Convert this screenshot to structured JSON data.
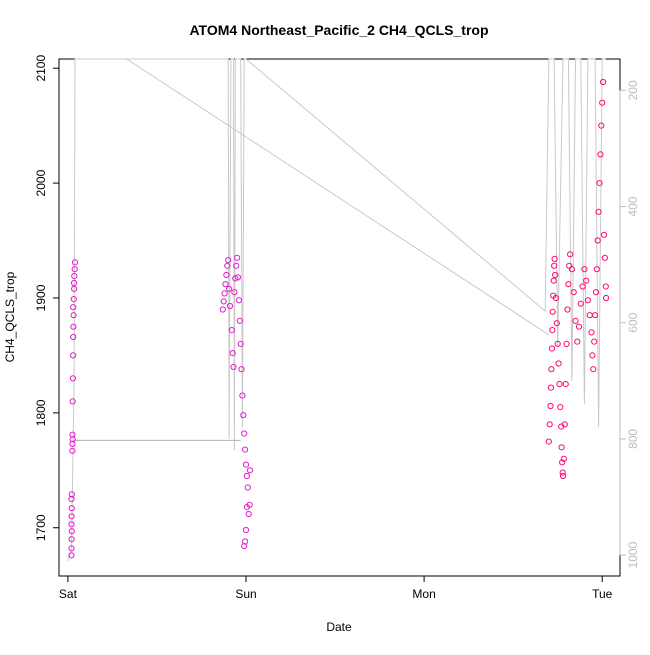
{
  "chart_data": {
    "type": "scatter",
    "title": "ATOM4 Northeast_Pacific_2 CH4_QCLS_trop",
    "xlabel": "Date",
    "ylabel": "CH4_QCLS_trop",
    "x_ticks": [
      "Sat",
      "Sun",
      "Mon",
      "Tue"
    ],
    "x_range_days": [
      -0.05,
      3.1
    ],
    "ylim": [
      1658,
      2108
    ],
    "y_ticks": [
      1700,
      1800,
      1900,
      2000,
      2100
    ],
    "y2_ticks": [
      200,
      400,
      600,
      800,
      1000
    ],
    "y2lim": [
      1036,
      146
    ],
    "grid": false,
    "colors": {
      "ch4_early": "#e31ccf",
      "ch4_late": "#ff0a78",
      "altitude": "#c8c8c8"
    },
    "series": [
      {
        "points": [
          [
            0.02,
            1676
          ],
          [
            0.02,
            1682
          ],
          [
            0.021,
            1690
          ],
          [
            0.022,
            1697
          ],
          [
            0.02,
            1703
          ],
          [
            0.021,
            1710
          ],
          [
            0.022,
            1717
          ],
          [
            0.02,
            1725
          ],
          [
            0.022,
            1729
          ],
          [
            0.025,
            1767
          ],
          [
            0.025,
            1773
          ],
          [
            0.027,
            1777
          ],
          [
            0.025,
            1781
          ],
          [
            0.027,
            1810
          ],
          [
            0.028,
            1830
          ],
          [
            0.03,
            1850
          ],
          [
            0.03,
            1866
          ],
          [
            0.031,
            1875
          ],
          [
            0.032,
            1885
          ],
          [
            0.03,
            1892
          ],
          [
            0.033,
            1899
          ],
          [
            0.035,
            1908
          ],
          [
            0.034,
            1913
          ],
          [
            0.036,
            1919
          ],
          [
            0.038,
            1925
          ],
          [
            0.04,
            1931
          ],
          [
            0.87,
            1890
          ],
          [
            0.875,
            1897
          ],
          [
            0.88,
            1904
          ],
          [
            0.885,
            1912
          ],
          [
            0.89,
            1920
          ],
          [
            0.895,
            1928
          ],
          [
            0.9,
            1933
          ],
          [
            0.905,
            1908
          ],
          [
            0.91,
            1893
          ],
          [
            0.92,
            1872
          ],
          [
            0.925,
            1852
          ],
          [
            0.93,
            1840
          ],
          [
            0.935,
            1905
          ],
          [
            0.94,
            1917
          ],
          [
            0.945,
            1928
          ],
          [
            0.95,
            1935
          ],
          [
            0.955,
            1918
          ],
          [
            0.96,
            1898
          ],
          [
            0.965,
            1880
          ],
          [
            0.97,
            1860
          ],
          [
            0.975,
            1838
          ],
          [
            0.98,
            1815
          ],
          [
            0.985,
            1798
          ],
          [
            0.99,
            1782
          ],
          [
            0.995,
            1768
          ],
          [
            1.0,
            1755
          ],
          [
            1.005,
            1745
          ],
          [
            1.01,
            1735
          ],
          [
            1.005,
            1718
          ],
          [
            1.0,
            1698
          ],
          [
            0.995,
            1688
          ],
          [
            0.99,
            1684
          ],
          [
            1.015,
            1712
          ],
          [
            1.02,
            1720
          ],
          [
            1.022,
            1750
          ]
        ]
      },
      {
        "points": [
          [
            2.7,
            1775
          ],
          [
            2.705,
            1790
          ],
          [
            2.71,
            1806
          ],
          [
            2.712,
            1822
          ],
          [
            2.715,
            1838
          ],
          [
            2.718,
            1856
          ],
          [
            2.72,
            1872
          ],
          [
            2.722,
            1888
          ],
          [
            2.725,
            1902
          ],
          [
            2.728,
            1915
          ],
          [
            2.73,
            1928
          ],
          [
            2.733,
            1934
          ],
          [
            2.736,
            1920
          ],
          [
            2.74,
            1900
          ],
          [
            2.745,
            1878
          ],
          [
            2.75,
            1860
          ],
          [
            2.755,
            1843
          ],
          [
            2.76,
            1825
          ],
          [
            2.765,
            1805
          ],
          [
            2.77,
            1788
          ],
          [
            2.772,
            1770
          ],
          [
            2.775,
            1757
          ],
          [
            2.778,
            1748
          ],
          [
            2.78,
            1745
          ],
          [
            2.785,
            1760
          ],
          [
            2.79,
            1790
          ],
          [
            2.795,
            1825
          ],
          [
            2.8,
            1860
          ],
          [
            2.805,
            1890
          ],
          [
            2.81,
            1912
          ],
          [
            2.815,
            1928
          ],
          [
            2.82,
            1938
          ],
          [
            2.83,
            1925
          ],
          [
            2.84,
            1905
          ],
          [
            2.85,
            1880
          ],
          [
            2.86,
            1862
          ],
          [
            2.87,
            1875
          ],
          [
            2.88,
            1895
          ],
          [
            2.89,
            1910
          ],
          [
            2.9,
            1925
          ],
          [
            2.91,
            1915
          ],
          [
            2.92,
            1898
          ],
          [
            2.93,
            1885
          ],
          [
            2.94,
            1870
          ],
          [
            2.945,
            1850
          ],
          [
            2.95,
            1838
          ],
          [
            2.955,
            1862
          ],
          [
            2.96,
            1885
          ],
          [
            2.965,
            1905
          ],
          [
            2.97,
            1925
          ],
          [
            2.975,
            1950
          ],
          [
            2.98,
            1975
          ],
          [
            2.985,
            2000
          ],
          [
            2.99,
            2025
          ],
          [
            2.995,
            2050
          ],
          [
            3.0,
            2070
          ],
          [
            3.005,
            2088
          ],
          [
            3.01,
            1955
          ],
          [
            3.015,
            1935
          ],
          [
            3.02,
            1910
          ],
          [
            3.022,
            1900
          ]
        ]
      }
    ],
    "altitude_line": [
      [
        0.0,
        1010
      ],
      [
        0.02,
        990
      ],
      [
        0.035,
        700
      ],
      [
        0.04,
        146
      ],
      [
        0.9,
        146
      ],
      [
        0.905,
        800
      ],
      [
        0.915,
        146
      ],
      [
        0.93,
        146
      ],
      [
        0.935,
        820
      ],
      [
        0.94,
        146
      ],
      [
        0.97,
        146
      ],
      [
        0.98,
        780
      ],
      [
        0.99,
        146
      ],
      [
        1.0,
        146
      ],
      [
        2.68,
        580
      ],
      [
        2.7,
        146
      ],
      [
        2.73,
        146
      ],
      [
        2.75,
        640
      ],
      [
        2.78,
        146
      ],
      [
        2.81,
        146
      ],
      [
        2.83,
        700
      ],
      [
        2.85,
        146
      ],
      [
        2.88,
        146
      ],
      [
        2.9,
        740
      ],
      [
        2.92,
        146
      ],
      [
        2.96,
        146
      ],
      [
        2.98,
        780
      ],
      [
        3.0,
        146
      ],
      [
        3.02,
        146
      ]
    ],
    "altitude_flat_segment": {
      "x": [
        0.03,
        0.97
      ],
      "value": 1776
    }
  }
}
